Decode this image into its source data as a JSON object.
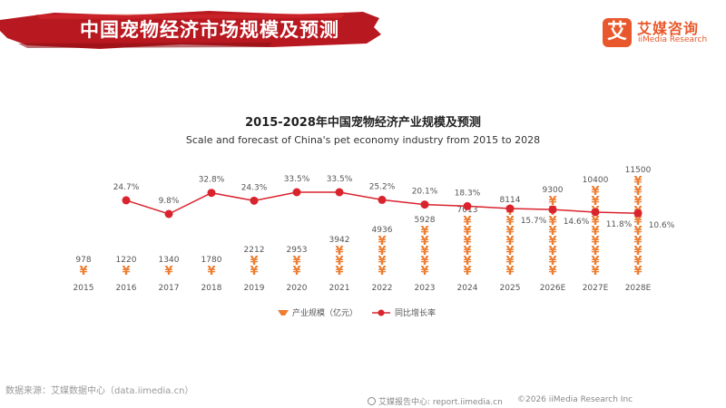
{
  "header": {
    "title": "中国宠物经济市场规模及预测",
    "logo_mark": "艾",
    "logo_cn": "艾媒咨询",
    "logo_en": "iiMedia Research",
    "accent_color": "#c8202a"
  },
  "chart_data": {
    "type": "bar+line",
    "title": "2015-2028年中国宠物经济产业规模及预测",
    "subtitle": "Scale and forecast of China's pet economy industry from 2015 to 2028",
    "categories": [
      "2015",
      "2016",
      "2017",
      "2018",
      "2019",
      "2020",
      "2021",
      "2022",
      "2023",
      "2024",
      "2025",
      "2026E",
      "2027E",
      "2028E"
    ],
    "series": [
      {
        "name": "产业规模（亿元）",
        "type": "pictorial-bar",
        "symbol": "¥",
        "color": "#ed7d31",
        "values": [
          978,
          1220,
          1340,
          1780,
          2212,
          2953,
          3942,
          4936,
          5928,
          7013,
          8114,
          9300,
          10400,
          11500
        ],
        "labels": [
          "978",
          "1220",
          "1340",
          "1780",
          "2212",
          "2953",
          "3942",
          "4936",
          "5928",
          "7013",
          "8114",
          "9300",
          "10400",
          "11500"
        ]
      },
      {
        "name": "同比增长率",
        "type": "line",
        "color": "#d9232d",
        "values": [
          null,
          24.7,
          9.8,
          32.8,
          24.3,
          33.5,
          33.5,
          25.2,
          20.1,
          18.3,
          15.7,
          14.6,
          11.8,
          10.6
        ],
        "labels": [
          "",
          "24.7%",
          "9.8%",
          "32.8%",
          "24.3%",
          "33.5%",
          "33.5%",
          "25.2%",
          "20.1%",
          "18.3%",
          "15.7%",
          "14.6%",
          "11.8%",
          "10.6%"
        ]
      }
    ],
    "legend": [
      "产业规模（亿元）",
      "同比增长率"
    ],
    "legend_position": "bottom-center"
  },
  "footer": {
    "source": "数据来源：艾媒数据中心（data.iimedia.cn）",
    "report_site": "艾媒报告中心: report.iimedia.cn",
    "copyright": "©2026  iiMedia Research  Inc"
  }
}
